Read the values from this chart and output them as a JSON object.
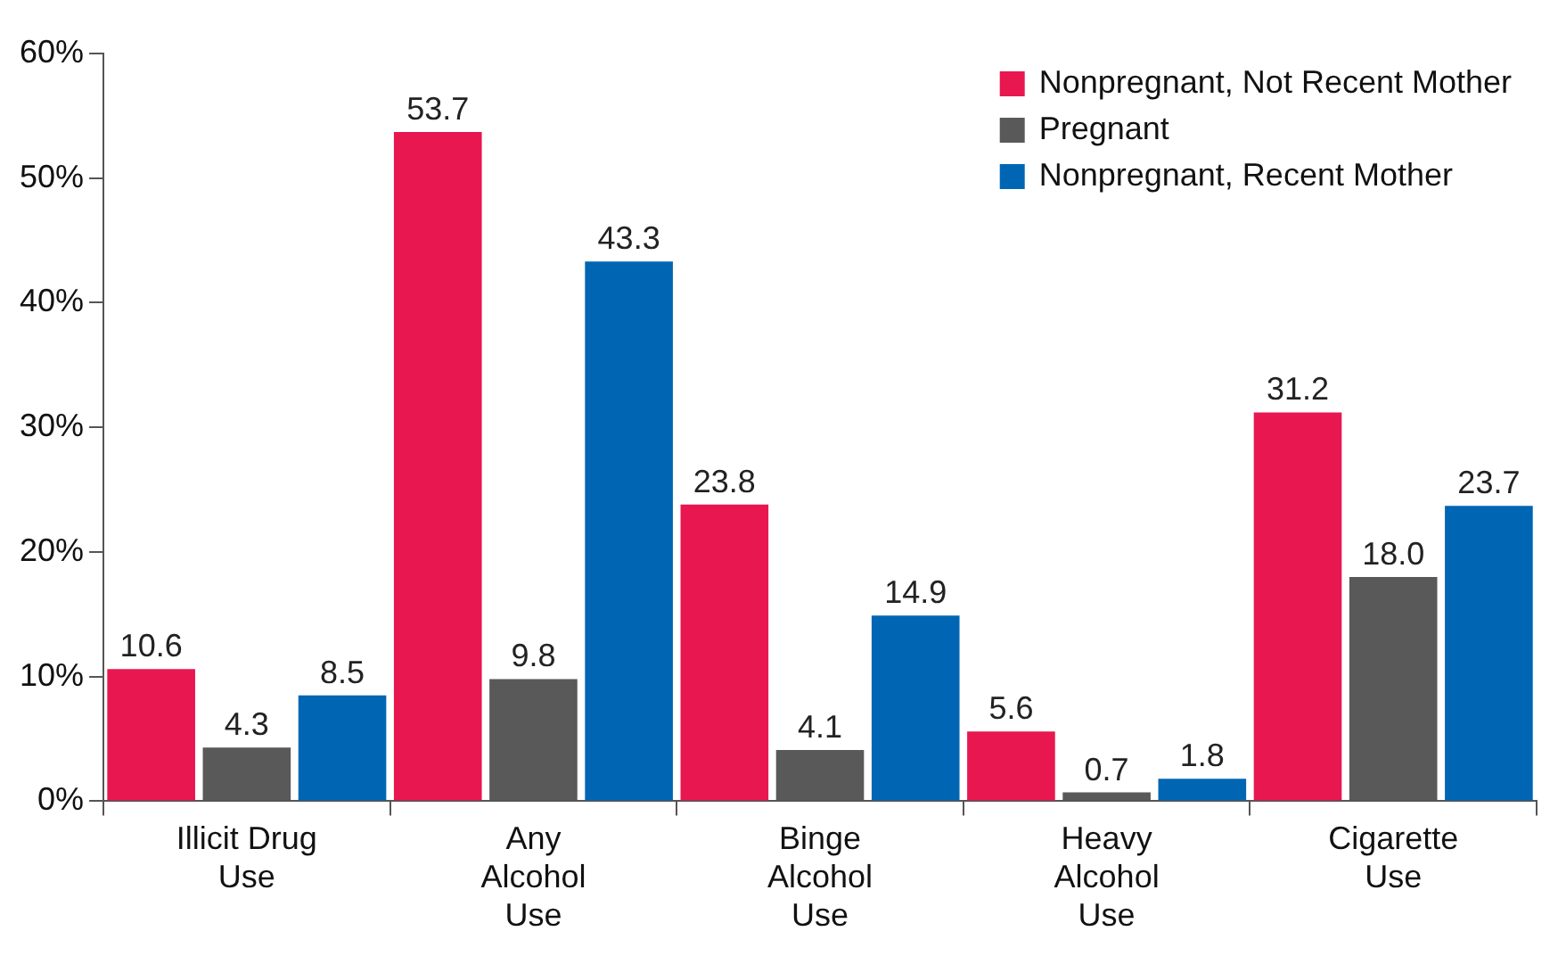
{
  "chart_data": {
    "type": "bar",
    "categories": [
      "Illicit Drug Use",
      "Any Alcohol Use",
      "Binge Alcohol Use",
      "Heavy Alcohol Use",
      "Cigarette Use"
    ],
    "series": [
      {
        "name": "Nonpregnant, Not Recent Mother",
        "color": "#e8174f",
        "values": [
          10.6,
          53.7,
          23.8,
          5.6,
          31.2
        ],
        "value_labels": [
          "10.6",
          "53.7",
          "23.8",
          "5.6",
          "31.2"
        ]
      },
      {
        "name": "Pregnant",
        "color": "#595959",
        "values": [
          4.3,
          9.8,
          4.1,
          0.7,
          18.0
        ],
        "value_labels": [
          "4.3",
          "9.8",
          "4.1",
          "0.7",
          "18.0"
        ]
      },
      {
        "name": "Nonpregnant, Recent Mother",
        "color": "#0066b3",
        "values": [
          8.5,
          43.3,
          14.9,
          1.8,
          23.7
        ],
        "value_labels": [
          "8.5",
          "43.3",
          "14.9",
          "1.8",
          "23.7"
        ]
      }
    ],
    "ylim": [
      0,
      60
    ],
    "yticks": [
      {
        "value": 0,
        "label": "0%"
      },
      {
        "value": 10,
        "label": "10%"
      },
      {
        "value": 20,
        "label": "20%"
      },
      {
        "value": 30,
        "label": "30%"
      },
      {
        "value": 40,
        "label": "40%"
      },
      {
        "value": 50,
        "label": "50%"
      },
      {
        "value": 60,
        "label": "60%"
      }
    ],
    "grid": false,
    "legend": "top right"
  }
}
